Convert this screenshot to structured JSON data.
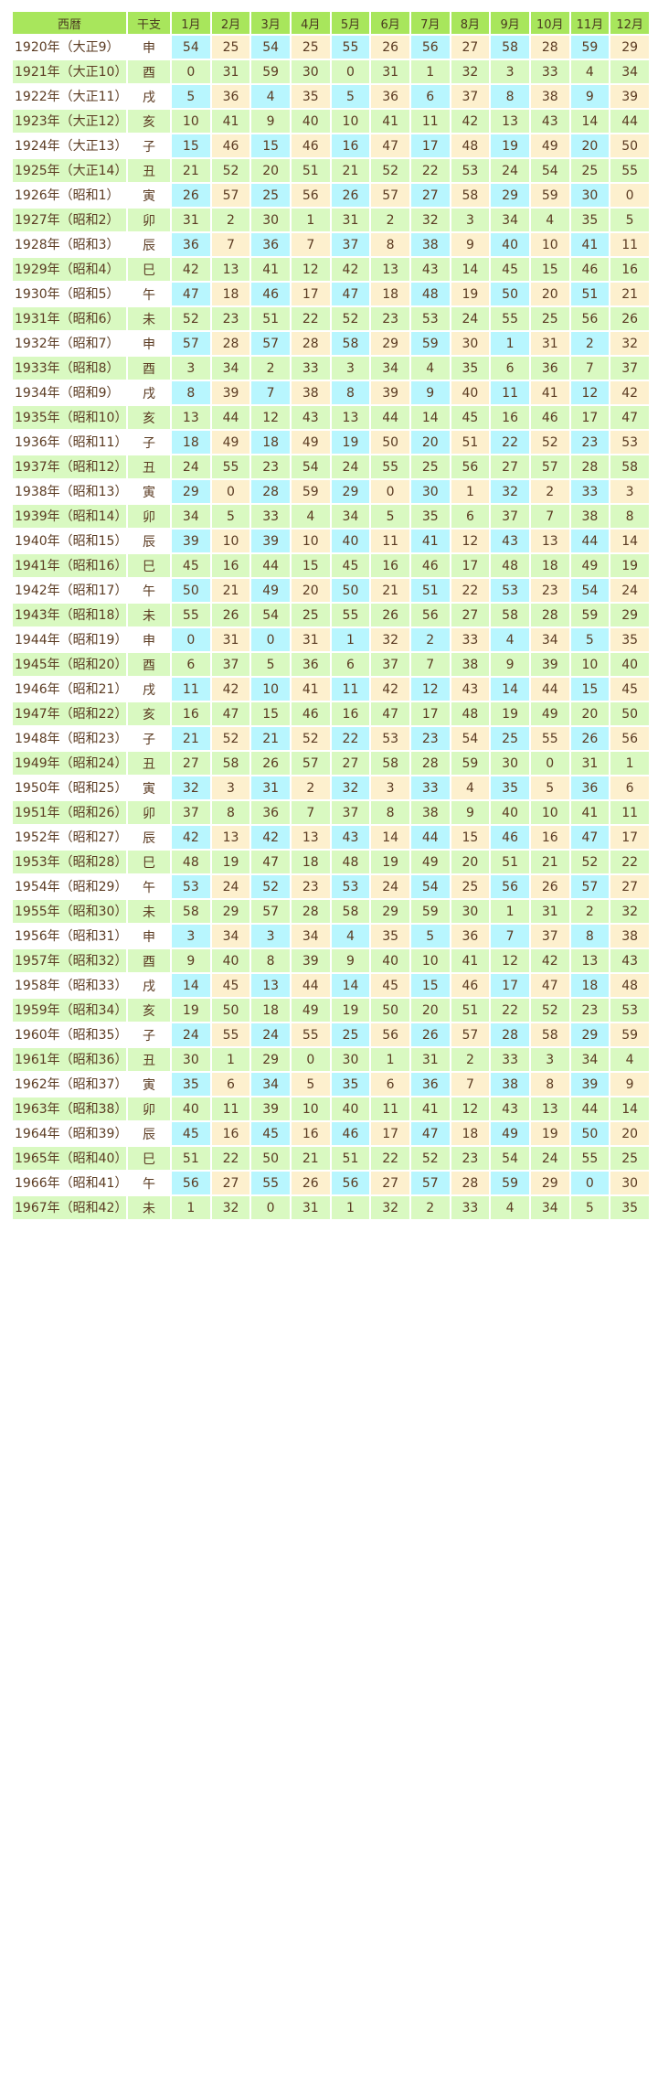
{
  "header": {
    "year": "西暦",
    "eto": "干支",
    "months": [
      "1月",
      "2月",
      "3月",
      "4月",
      "5月",
      "6月",
      "7月",
      "8月",
      "9月",
      "10月",
      "11月",
      "12月"
    ]
  },
  "colors": {
    "header": "#a8e65c",
    "green_row": "#d9f9c1",
    "blue_cell": "#b8f6fe",
    "beige_cell": "#fdf0ce",
    "text": "#5b3b22"
  },
  "rows": [
    {
      "year": "1920年（大正9）",
      "eto": "申",
      "v": [
        "54",
        "25",
        "54",
        "25",
        "55",
        "26",
        "56",
        "27",
        "58",
        "28",
        "59",
        "29"
      ]
    },
    {
      "year": "1921年（大正10）",
      "eto": "酉",
      "v": [
        "0",
        "31",
        "59",
        "30",
        "0",
        "31",
        "1",
        "32",
        "3",
        "33",
        "4",
        "34"
      ]
    },
    {
      "year": "1922年（大正11）",
      "eto": "戌",
      "v": [
        "5",
        "36",
        "4",
        "35",
        "5",
        "36",
        "6",
        "37",
        "8",
        "38",
        "9",
        "39"
      ]
    },
    {
      "year": "1923年（大正12）",
      "eto": "亥",
      "v": [
        "10",
        "41",
        "9",
        "40",
        "10",
        "41",
        "11",
        "42",
        "13",
        "43",
        "14",
        "44"
      ]
    },
    {
      "year": "1924年（大正13）",
      "eto": "子",
      "v": [
        "15",
        "46",
        "15",
        "46",
        "16",
        "47",
        "17",
        "48",
        "19",
        "49",
        "20",
        "50"
      ]
    },
    {
      "year": "1925年（大正14）",
      "eto": "丑",
      "v": [
        "21",
        "52",
        "20",
        "51",
        "21",
        "52",
        "22",
        "53",
        "24",
        "54",
        "25",
        "55"
      ]
    },
    {
      "year": "1926年（昭和1）",
      "eto": "寅",
      "v": [
        "26",
        "57",
        "25",
        "56",
        "26",
        "57",
        "27",
        "58",
        "29",
        "59",
        "30",
        "0"
      ]
    },
    {
      "year": "1927年（昭和2）",
      "eto": "卯",
      "v": [
        "31",
        "2",
        "30",
        "1",
        "31",
        "2",
        "32",
        "3",
        "34",
        "4",
        "35",
        "5"
      ]
    },
    {
      "year": "1928年（昭和3）",
      "eto": "辰",
      "v": [
        "36",
        "7",
        "36",
        "7",
        "37",
        "8",
        "38",
        "9",
        "40",
        "10",
        "41",
        "11"
      ]
    },
    {
      "year": "1929年（昭和4）",
      "eto": "巳",
      "v": [
        "42",
        "13",
        "41",
        "12",
        "42",
        "13",
        "43",
        "14",
        "45",
        "15",
        "46",
        "16"
      ]
    },
    {
      "year": "1930年（昭和5）",
      "eto": "午",
      "v": [
        "47",
        "18",
        "46",
        "17",
        "47",
        "18",
        "48",
        "19",
        "50",
        "20",
        "51",
        "21"
      ]
    },
    {
      "year": "1931年（昭和6）",
      "eto": "未",
      "v": [
        "52",
        "23",
        "51",
        "22",
        "52",
        "23",
        "53",
        "24",
        "55",
        "25",
        "56",
        "26"
      ]
    },
    {
      "year": "1932年（昭和7）",
      "eto": "申",
      "v": [
        "57",
        "28",
        "57",
        "28",
        "58",
        "29",
        "59",
        "30",
        "1",
        "31",
        "2",
        "32"
      ]
    },
    {
      "year": "1933年（昭和8）",
      "eto": "酉",
      "v": [
        "3",
        "34",
        "2",
        "33",
        "3",
        "34",
        "4",
        "35",
        "6",
        "36",
        "7",
        "37"
      ]
    },
    {
      "year": "1934年（昭和9）",
      "eto": "戌",
      "v": [
        "8",
        "39",
        "7",
        "38",
        "8",
        "39",
        "9",
        "40",
        "11",
        "41",
        "12",
        "42"
      ]
    },
    {
      "year": "1935年（昭和10）",
      "eto": "亥",
      "v": [
        "13",
        "44",
        "12",
        "43",
        "13",
        "44",
        "14",
        "45",
        "16",
        "46",
        "17",
        "47"
      ]
    },
    {
      "year": "1936年（昭和11）",
      "eto": "子",
      "v": [
        "18",
        "49",
        "18",
        "49",
        "19",
        "50",
        "20",
        "51",
        "22",
        "52",
        "23",
        "53"
      ]
    },
    {
      "year": "1937年（昭和12）",
      "eto": "丑",
      "v": [
        "24",
        "55",
        "23",
        "54",
        "24",
        "55",
        "25",
        "56",
        "27",
        "57",
        "28",
        "58"
      ]
    },
    {
      "year": "1938年（昭和13）",
      "eto": "寅",
      "v": [
        "29",
        "0",
        "28",
        "59",
        "29",
        "0",
        "30",
        "1",
        "32",
        "2",
        "33",
        "3"
      ]
    },
    {
      "year": "1939年（昭和14）",
      "eto": "卯",
      "v": [
        "34",
        "5",
        "33",
        "4",
        "34",
        "5",
        "35",
        "6",
        "37",
        "7",
        "38",
        "8"
      ]
    },
    {
      "year": "1940年（昭和15）",
      "eto": "辰",
      "v": [
        "39",
        "10",
        "39",
        "10",
        "40",
        "11",
        "41",
        "12",
        "43",
        "13",
        "44",
        "14"
      ]
    },
    {
      "year": "1941年（昭和16）",
      "eto": "巳",
      "v": [
        "45",
        "16",
        "44",
        "15",
        "45",
        "16",
        "46",
        "17",
        "48",
        "18",
        "49",
        "19"
      ]
    },
    {
      "year": "1942年（昭和17）",
      "eto": "午",
      "v": [
        "50",
        "21",
        "49",
        "20",
        "50",
        "21",
        "51",
        "22",
        "53",
        "23",
        "54",
        "24"
      ]
    },
    {
      "year": "1943年（昭和18）",
      "eto": "未",
      "v": [
        "55",
        "26",
        "54",
        "25",
        "55",
        "26",
        "56",
        "27",
        "58",
        "28",
        "59",
        "29"
      ]
    },
    {
      "year": "1944年（昭和19）",
      "eto": "申",
      "v": [
        "0",
        "31",
        "0",
        "31",
        "1",
        "32",
        "2",
        "33",
        "4",
        "34",
        "5",
        "35"
      ]
    },
    {
      "year": "1945年（昭和20）",
      "eto": "酉",
      "v": [
        "6",
        "37",
        "5",
        "36",
        "6",
        "37",
        "7",
        "38",
        "9",
        "39",
        "10",
        "40"
      ]
    },
    {
      "year": "1946年（昭和21）",
      "eto": "戌",
      "v": [
        "11",
        "42",
        "10",
        "41",
        "11",
        "42",
        "12",
        "43",
        "14",
        "44",
        "15",
        "45"
      ]
    },
    {
      "year": "1947年（昭和22）",
      "eto": "亥",
      "v": [
        "16",
        "47",
        "15",
        "46",
        "16",
        "47",
        "17",
        "48",
        "19",
        "49",
        "20",
        "50"
      ]
    },
    {
      "year": "1948年（昭和23）",
      "eto": "子",
      "v": [
        "21",
        "52",
        "21",
        "52",
        "22",
        "53",
        "23",
        "54",
        "25",
        "55",
        "26",
        "56"
      ]
    },
    {
      "year": "1949年（昭和24）",
      "eto": "丑",
      "v": [
        "27",
        "58",
        "26",
        "57",
        "27",
        "58",
        "28",
        "59",
        "30",
        "0",
        "31",
        "1"
      ]
    },
    {
      "year": "1950年（昭和25）",
      "eto": "寅",
      "v": [
        "32",
        "3",
        "31",
        "2",
        "32",
        "3",
        "33",
        "4",
        "35",
        "5",
        "36",
        "6"
      ]
    },
    {
      "year": "1951年（昭和26）",
      "eto": "卯",
      "v": [
        "37",
        "8",
        "36",
        "7",
        "37",
        "8",
        "38",
        "9",
        "40",
        "10",
        "41",
        "11"
      ]
    },
    {
      "year": "1952年（昭和27）",
      "eto": "辰",
      "v": [
        "42",
        "13",
        "42",
        "13",
        "43",
        "14",
        "44",
        "15",
        "46",
        "16",
        "47",
        "17"
      ]
    },
    {
      "year": "1953年（昭和28）",
      "eto": "巳",
      "v": [
        "48",
        "19",
        "47",
        "18",
        "48",
        "19",
        "49",
        "20",
        "51",
        "21",
        "52",
        "22"
      ]
    },
    {
      "year": "1954年（昭和29）",
      "eto": "午",
      "v": [
        "53",
        "24",
        "52",
        "23",
        "53",
        "24",
        "54",
        "25",
        "56",
        "26",
        "57",
        "27"
      ]
    },
    {
      "year": "1955年（昭和30）",
      "eto": "未",
      "v": [
        "58",
        "29",
        "57",
        "28",
        "58",
        "29",
        "59",
        "30",
        "1",
        "31",
        "2",
        "32"
      ]
    },
    {
      "year": "1956年（昭和31）",
      "eto": "申",
      "v": [
        "3",
        "34",
        "3",
        "34",
        "4",
        "35",
        "5",
        "36",
        "7",
        "37",
        "8",
        "38"
      ]
    },
    {
      "year": "1957年（昭和32）",
      "eto": "酉",
      "v": [
        "9",
        "40",
        "8",
        "39",
        "9",
        "40",
        "10",
        "41",
        "12",
        "42",
        "13",
        "43"
      ]
    },
    {
      "year": "1958年（昭和33）",
      "eto": "戌",
      "v": [
        "14",
        "45",
        "13",
        "44",
        "14",
        "45",
        "15",
        "46",
        "17",
        "47",
        "18",
        "48"
      ]
    },
    {
      "year": "1959年（昭和34）",
      "eto": "亥",
      "v": [
        "19",
        "50",
        "18",
        "49",
        "19",
        "50",
        "20",
        "51",
        "22",
        "52",
        "23",
        "53"
      ]
    },
    {
      "year": "1960年（昭和35）",
      "eto": "子",
      "v": [
        "24",
        "55",
        "24",
        "55",
        "25",
        "56",
        "26",
        "57",
        "28",
        "58",
        "29",
        "59"
      ]
    },
    {
      "year": "1961年（昭和36）",
      "eto": "丑",
      "v": [
        "30",
        "1",
        "29",
        "0",
        "30",
        "1",
        "31",
        "2",
        "33",
        "3",
        "34",
        "4"
      ]
    },
    {
      "year": "1962年（昭和37）",
      "eto": "寅",
      "v": [
        "35",
        "6",
        "34",
        "5",
        "35",
        "6",
        "36",
        "7",
        "38",
        "8",
        "39",
        "9"
      ]
    },
    {
      "year": "1963年（昭和38）",
      "eto": "卯",
      "v": [
        "40",
        "11",
        "39",
        "10",
        "40",
        "11",
        "41",
        "12",
        "43",
        "13",
        "44",
        "14"
      ]
    },
    {
      "year": "1964年（昭和39）",
      "eto": "辰",
      "v": [
        "45",
        "16",
        "45",
        "16",
        "46",
        "17",
        "47",
        "18",
        "49",
        "19",
        "50",
        "20"
      ]
    },
    {
      "year": "1965年（昭和40）",
      "eto": "巳",
      "v": [
        "51",
        "22",
        "50",
        "21",
        "51",
        "22",
        "52",
        "23",
        "54",
        "24",
        "55",
        "25"
      ]
    },
    {
      "year": "1966年（昭和41）",
      "eto": "午",
      "v": [
        "56",
        "27",
        "55",
        "26",
        "56",
        "27",
        "57",
        "28",
        "59",
        "29",
        "0",
        "30"
      ]
    },
    {
      "year": "1967年（昭和42）",
      "eto": "未",
      "v": [
        "1",
        "32",
        "0",
        "31",
        "1",
        "32",
        "2",
        "33",
        "4",
        "34",
        "5",
        "35"
      ]
    }
  ]
}
